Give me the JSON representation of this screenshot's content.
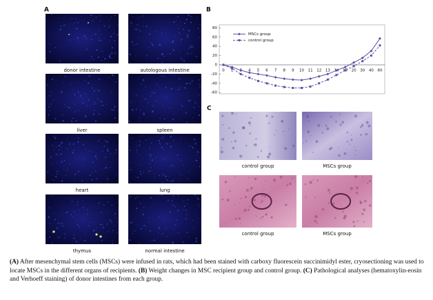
{
  "panels": {
    "A": {
      "label": "A",
      "images": [
        {
          "label": "donor intestine"
        },
        {
          "label": "autologous intestine"
        },
        {
          "label": "liver"
        },
        {
          "label": "spleen"
        },
        {
          "label": "heart"
        },
        {
          "label": "lung"
        },
        {
          "label": "thymus"
        },
        {
          "label": "normal intestine"
        }
      ]
    },
    "B": {
      "label": "B"
    },
    "C": {
      "label": "C",
      "images": [
        {
          "label": "control group"
        },
        {
          "label": "MSCs group"
        },
        {
          "label": "control group"
        },
        {
          "label": "MSCs group"
        }
      ]
    }
  },
  "chart_data": {
    "type": "line",
    "categories": [
      "0",
      "1",
      "3",
      "4",
      "5",
      "6",
      "7",
      "8",
      "9",
      "10",
      "11",
      "12",
      "13",
      "14",
      "15",
      "20",
      "30",
      "40",
      "60"
    ],
    "series": [
      {
        "name": "MSCs group",
        "color": "#5b4fa6",
        "dashed": false,
        "marker": "diamond",
        "values": [
          0,
          -5,
          -12,
          -17,
          -20,
          -23,
          -27,
          -30,
          -32,
          -33,
          -30,
          -25,
          -20,
          -12,
          -5,
          5,
          15,
          30,
          57
        ]
      },
      {
        "name": "control group",
        "color": "#5b4fa6",
        "dashed": true,
        "marker": "square",
        "values": [
          0,
          -8,
          -20,
          -28,
          -35,
          -40,
          -45,
          -48,
          -50,
          -50,
          -47,
          -40,
          -32,
          -22,
          -12,
          -3,
          8,
          20,
          42
        ]
      }
    ],
    "ylim": [
      -60,
      80
    ],
    "yticks": [
      -60,
      -40,
      -20,
      0,
      20,
      40,
      60,
      80
    ],
    "legend": "upper left"
  },
  "caption": [
    {
      "text": "(A)",
      "bold": true
    },
    {
      "text": " After mesenchymal stem cells (MSCs) were infused in rats, which had been stained with carboxy fluorescein succinimidyl ester, cryosectioning was used to locate MSCs in the different organs of recipients. ",
      "bold": false
    },
    {
      "text": "(B)",
      "bold": true
    },
    {
      "text": " Weight changes in MSC recipient group and control group. ",
      "bold": false
    },
    {
      "text": "(C)",
      "bold": true
    },
    {
      "text": " Pathological analyses (hematoxylin-eosin and Verhoeff staining) of donor intestines from each group.",
      "bold": false
    }
  ]
}
